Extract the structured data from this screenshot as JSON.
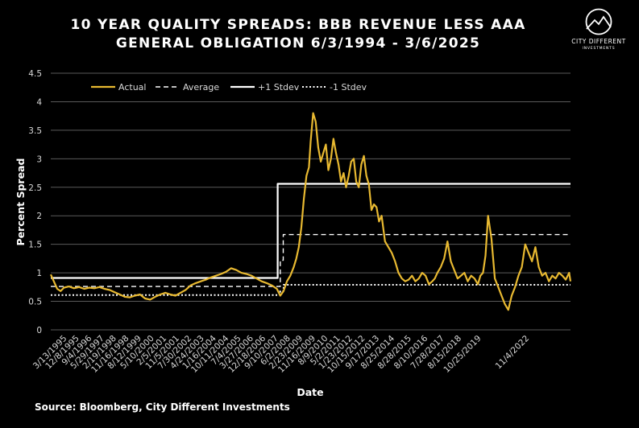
{
  "page": {
    "title_line1": "10 YEAR QUALITY SPREADS: BBB REVENUE LESS AAA",
    "title_line2": "GENERAL OBLIGATION 6/3/1994 - 3/6/2025",
    "source": "Source: Bloomberg, City Different Investments",
    "logo_name": "CITY DIFFERENT",
    "logo_sub": "INVESTMENTS"
  },
  "colors": {
    "background": "#000000",
    "actual": "#e8b931",
    "reference": "#ffffff",
    "grid": "#5a5a5a",
    "tick_text": "#d9d9d9"
  },
  "chart_data": {
    "type": "line",
    "title": "10 YEAR QUALITY SPREADS: BBB REVENUE LESS AAA GENERAL OBLIGATION 6/3/1994 - 3/6/2025",
    "xlabel": "Date",
    "ylabel": "Percent Spread",
    "ylim": [
      0,
      4.5
    ],
    "yticks": [
      "0",
      "0.5",
      "1",
      "1.5",
      "2",
      "2.5",
      "3",
      "3.5",
      "4",
      "4.5"
    ],
    "xlim": [
      1994.42,
      2025.18
    ],
    "xtick_labels": [
      "3/13/1995",
      "12/8/1995",
      "9/4/1996",
      "5/29/1997",
      "2/19/1998",
      "11/16/1998",
      "8/12/1999",
      "5/10/2000",
      "2/5/2001",
      "11/5/2001",
      "7/30/2002",
      "4/24/2003",
      "1/16/2004",
      "10/11/2004",
      "7/4/2005",
      "3/27/2006",
      "12/18/2006",
      "9/10/2007",
      "6/2/2008",
      "2/23/2009",
      "11/16/2009",
      "8/9/2010",
      "5/2/2011",
      "1/23/2012",
      "10/15/2012",
      "9/17/2013",
      "8/25/2014",
      "8/28/2015",
      "8/10/2016",
      "7/28/2017",
      "8/15/2018",
      "10/25/2019",
      "11/4/2022"
    ],
    "xtick_positions": [
      1995.2,
      1995.93,
      1996.67,
      1997.41,
      1998.13,
      1998.87,
      1999.61,
      2000.36,
      2001.1,
      2001.85,
      2002.58,
      2003.32,
      2004.04,
      2004.78,
      2005.51,
      2006.24,
      2006.97,
      2007.71,
      2008.43,
      2009.16,
      2009.92,
      2010.65,
      2011.38,
      2012.1,
      2012.85,
      2013.69,
      2014.59,
      2015.59,
      2016.56,
      2017.54,
      2018.55,
      2019.72,
      2022.56
    ],
    "legend": {
      "placement": "top-left",
      "entries": [
        "Actual",
        "Average",
        "+1 Stdev",
        "-1 Stdev"
      ]
    },
    "series": [
      {
        "name": "Actual",
        "style": "solid",
        "x": [
          1994.42,
          1994.6,
          1994.8,
          1995.0,
          1995.2,
          1995.5,
          1995.8,
          1996.1,
          1996.4,
          1996.7,
          1997.0,
          1997.3,
          1997.6,
          1997.9,
          1998.2,
          1998.5,
          1998.8,
          1999.1,
          1999.4,
          1999.7,
          2000.0,
          2000.3,
          2000.6,
          2000.9,
          2001.2,
          2001.5,
          2001.8,
          2002.1,
          2002.4,
          2002.7,
          2003.0,
          2003.3,
          2003.6,
          2003.9,
          2004.2,
          2004.5,
          2004.8,
          2005.1,
          2005.4,
          2005.7,
          2006.0,
          2006.3,
          2006.6,
          2006.9,
          2007.2,
          2007.5,
          2007.8,
          2008.0,
          2008.2,
          2008.4,
          2008.6,
          2008.8,
          2008.95,
          2009.1,
          2009.25,
          2009.4,
          2009.55,
          2009.7,
          2009.8,
          2009.95,
          2010.1,
          2010.25,
          2010.4,
          2010.55,
          2010.7,
          2010.85,
          2011.0,
          2011.15,
          2011.3,
          2011.45,
          2011.6,
          2011.75,
          2011.9,
          2012.05,
          2012.2,
          2012.35,
          2012.5,
          2012.65,
          2012.8,
          2012.95,
          2013.1,
          2013.25,
          2013.4,
          2013.55,
          2013.7,
          2013.85,
          2014.0,
          2014.2,
          2014.4,
          2014.6,
          2014.8,
          2015.0,
          2015.2,
          2015.4,
          2015.6,
          2015.8,
          2016.0,
          2016.2,
          2016.4,
          2016.6,
          2016.8,
          2017.0,
          2017.15,
          2017.3,
          2017.5,
          2017.7,
          2017.9,
          2018.1,
          2018.3,
          2018.5,
          2018.7,
          2018.9,
          2019.1,
          2019.3,
          2019.5,
          2019.7,
          2019.85,
          2020.0,
          2020.15,
          2020.3,
          2020.5,
          2020.7,
          2020.9,
          2021.1,
          2021.3,
          2021.5,
          2021.7,
          2021.9,
          2022.1,
          2022.3,
          2022.5,
          2022.7,
          2022.9,
          2023.1,
          2023.3,
          2023.5,
          2023.7,
          2023.9,
          2024.1,
          2024.3,
          2024.5,
          2024.7,
          2024.9,
          2025.1,
          2025.18
        ],
        "values": [
          0.97,
          0.85,
          0.72,
          0.68,
          0.74,
          0.76,
          0.73,
          0.75,
          0.72,
          0.74,
          0.73,
          0.75,
          0.72,
          0.7,
          0.66,
          0.62,
          0.58,
          0.57,
          0.6,
          0.62,
          0.55,
          0.53,
          0.58,
          0.62,
          0.65,
          0.62,
          0.6,
          0.65,
          0.7,
          0.78,
          0.82,
          0.85,
          0.88,
          0.92,
          0.95,
          0.98,
          1.02,
          1.08,
          1.05,
          1.0,
          0.98,
          0.95,
          0.9,
          0.85,
          0.82,
          0.78,
          0.72,
          0.6,
          0.68,
          0.85,
          0.95,
          1.1,
          1.25,
          1.45,
          1.8,
          2.3,
          2.7,
          2.85,
          3.3,
          3.8,
          3.65,
          3.2,
          2.95,
          3.1,
          3.25,
          2.8,
          3.0,
          3.35,
          3.1,
          2.9,
          2.6,
          2.75,
          2.5,
          2.7,
          2.95,
          3.0,
          2.6,
          2.5,
          2.9,
          3.05,
          2.7,
          2.55,
          2.1,
          2.2,
          2.15,
          1.9,
          2.0,
          1.55,
          1.45,
          1.35,
          1.2,
          1.0,
          0.9,
          0.85,
          0.88,
          0.95,
          0.85,
          0.9,
          1.0,
          0.95,
          0.8,
          0.85,
          0.9,
          1.0,
          1.1,
          1.25,
          1.55,
          1.2,
          1.05,
          0.9,
          0.95,
          1.0,
          0.85,
          0.95,
          0.9,
          0.8,
          0.95,
          1.0,
          1.3,
          2.0,
          1.6,
          0.9,
          0.75,
          0.6,
          0.45,
          0.35,
          0.6,
          0.75,
          0.95,
          1.1,
          1.5,
          1.35,
          1.2,
          1.45,
          1.1,
          0.95,
          1.0,
          0.85,
          0.95,
          0.9,
          1.0,
          0.95,
          0.88,
          1.0,
          0.85
        ]
      },
      {
        "name": "Average",
        "style": "dashed",
        "x": [
          1994.42,
          2008.0,
          2008.0,
          2008.18,
          2008.18,
          2025.18
        ],
        "values": [
          0.76,
          0.76,
          1.22,
          1.22,
          1.67,
          1.67
        ]
      },
      {
        "name": "+1 Stdev",
        "style": "solid",
        "x": [
          1994.42,
          2007.85,
          2007.85,
          2025.18
        ],
        "values": [
          0.91,
          0.91,
          2.56,
          2.56
        ]
      },
      {
        "name": "-1 Stdev",
        "style": "dotted",
        "x": [
          1994.42,
          2008.0,
          2008.0,
          2008.2,
          2008.2,
          2025.18
        ],
        "values": [
          0.61,
          0.61,
          0.68,
          0.68,
          0.79,
          0.79
        ]
      }
    ]
  }
}
